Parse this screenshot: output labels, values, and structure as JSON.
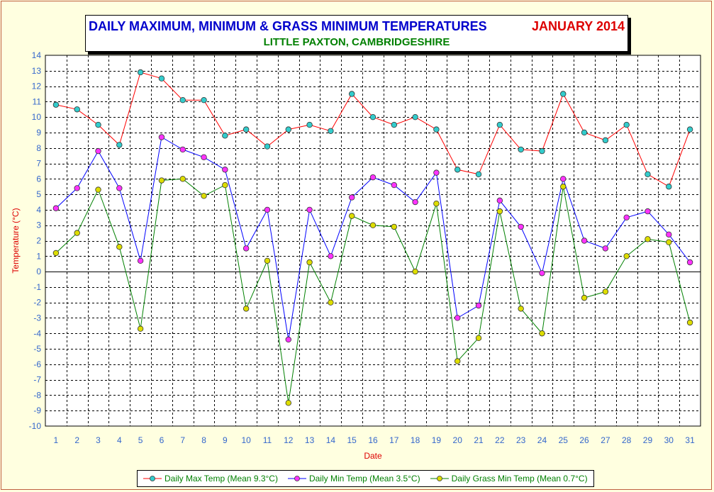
{
  "chart_data": {
    "type": "line",
    "title": "DAILY MAXIMUM, MINIMUM & GRASS MINIMUM TEMPERATURES",
    "title_date": "JANUARY 2014",
    "subtitle": "LITTLE PAXTON, CAMBRIDGESHIRE",
    "xlabel": "Date",
    "ylabel": "Temperature (°C)",
    "ylim": [
      -10,
      14
    ],
    "ytick_step": 1,
    "grid": true,
    "legend_position": "bottom",
    "x": [
      1,
      2,
      3,
      4,
      5,
      6,
      7,
      8,
      9,
      10,
      11,
      12,
      13,
      14,
      15,
      16,
      17,
      18,
      19,
      20,
      21,
      22,
      23,
      24,
      25,
      26,
      27,
      28,
      29,
      30,
      31
    ],
    "series": [
      {
        "name": "Daily Max Temp (Mean 9.3°C)",
        "line_color": "#ff0000",
        "marker_color": "#33cccc",
        "values": [
          10.8,
          10.5,
          9.5,
          8.2,
          12.9,
          12.5,
          11.1,
          11.1,
          8.8,
          9.2,
          8.1,
          9.2,
          9.5,
          9.1,
          11.5,
          10.0,
          9.5,
          10.0,
          9.2,
          6.6,
          6.3,
          9.5,
          7.9,
          7.8,
          11.5,
          9.0,
          8.5,
          9.5,
          6.3,
          5.5,
          9.2
        ]
      },
      {
        "name": "Daily Min Temp (Mean 3.5°C)",
        "line_color": "#0000ff",
        "marker_color": "#ff33ff",
        "values": [
          4.1,
          5.4,
          7.8,
          5.4,
          0.7,
          8.7,
          7.9,
          7.4,
          6.6,
          1.5,
          4.0,
          -4.4,
          4.0,
          1.0,
          4.8,
          6.1,
          5.6,
          4.5,
          6.4,
          -3.0,
          -2.2,
          4.6,
          2.9,
          -0.1,
          6.0,
          2.0,
          1.5,
          3.5,
          3.9,
          2.4,
          0.6
        ]
      },
      {
        "name": "Daily Grass Min Temp (Mean 0.7°C)",
        "line_color": "#008000",
        "marker_color": "#dddd00",
        "values": [
          1.2,
          2.5,
          5.3,
          1.6,
          -3.7,
          5.9,
          6.0,
          4.9,
          5.6,
          -2.4,
          0.7,
          -8.5,
          0.6,
          -2.0,
          3.6,
          3.0,
          2.9,
          0.0,
          4.4,
          -5.8,
          -4.3,
          3.9,
          -2.4,
          -4.0,
          5.5,
          -1.7,
          -1.3,
          1.0,
          2.1,
          1.9,
          -3.3
        ]
      }
    ]
  },
  "colors": {
    "title": "#0000cc",
    "title_date": "#dd0000",
    "subtitle": "#008000",
    "tick_labels": "#3366cc",
    "axis_labels": "#dd0000",
    "legend_text": "#008000",
    "background": "#ffffe0",
    "plot_background": "#ffffff"
  }
}
